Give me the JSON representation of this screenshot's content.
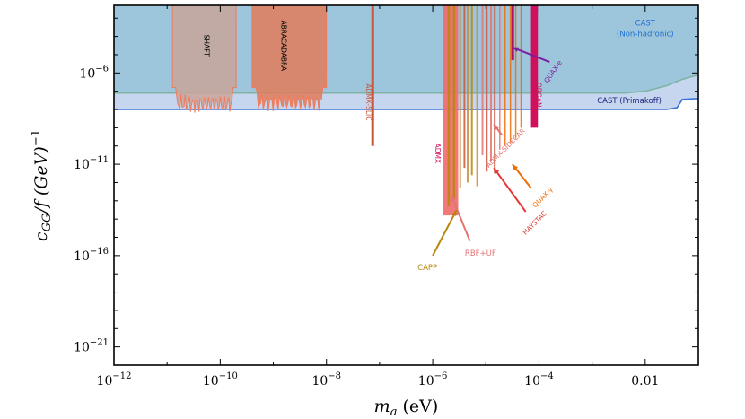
{
  "chart_data": {
    "type": "exclusion-plot",
    "title": "",
    "xlabel": "m",
    "xlabel_sub": "a",
    "xlabel_unit": " (eV)",
    "ylabel": "c",
    "ylabel_sub": "GG",
    "ylabel_rest": "/f (GeV)",
    "ylabel_sup": "−1",
    "x_scale": "log10",
    "y_scale": "log10",
    "xlim_log": [
      -12,
      -1
    ],
    "ylim_log": [
      -22,
      -2.3
    ],
    "x_ticks": [
      {
        "exp": -12,
        "base": "10",
        "sup": "−12"
      },
      {
        "exp": -10,
        "base": "10",
        "sup": "−10"
      },
      {
        "exp": -8,
        "base": "10",
        "sup": "−8"
      },
      {
        "exp": -6,
        "base": "10",
        "sup": "−6"
      },
      {
        "exp": -4,
        "base": "10",
        "sup": "−4"
      },
      {
        "exp": -2,
        "base": "",
        "sup": "",
        "text": "0.01"
      }
    ],
    "y_ticks": [
      {
        "exp": -6,
        "base": "10",
        "sup": "−6"
      },
      {
        "exp": -11,
        "base": "10",
        "sup": "−11"
      },
      {
        "exp": -16,
        "base": "10",
        "sup": "−16"
      },
      {
        "exp": -21,
        "base": "10",
        "sup": "−21"
      }
    ],
    "regions": [
      {
        "name": "CAST (Non-hadronic)",
        "color": "#9dc6dc",
        "edge": "#7fb3a6",
        "lower_log_y": -7.1
      },
      {
        "name": "CAST (Primakoff)",
        "color": "#c7d6ef",
        "edge": "#3b72d9",
        "lower_log_y": -8.0
      },
      {
        "name": "SHAFT",
        "color": "#c9a49a",
        "x_log": [
          -10.9,
          -9.7
        ],
        "lower_log_y": -7.7
      },
      {
        "name": "ABRACADABRA",
        "color": "#e07b5a",
        "x_log": [
          -9.4,
          -8.0
        ],
        "lower_log_y": -7.6
      }
    ],
    "narrow_limits": [
      {
        "name": "ADMX-SLIC",
        "x_log": -7.13,
        "lower_log_y": -10.0,
        "color": "#c9573a"
      },
      {
        "name": "ADMX",
        "x_log_range": [
          -5.8,
          -5.52
        ],
        "lower_log_y": -13.8,
        "color": "#f06a6a"
      },
      {
        "name": "ORGAN",
        "x_log_range": [
          -4.15,
          -4.02
        ],
        "lower_log_y": -9.0,
        "color": "#d0105a"
      }
    ],
    "labels": [
      {
        "name": "SHAFT",
        "text": "SHAFT",
        "color": "#000000",
        "x_log": -10.3,
        "y_log": -4.5,
        "rotate": 90
      },
      {
        "name": "ABRACADABRA",
        "text": "ABRACADABRA",
        "color": "#000000",
        "x_log": -8.85,
        "y_log": -4.5,
        "rotate": 90
      },
      {
        "name": "ADMX-SLIC",
        "text": "ADMX-SLIC",
        "color": "#c9573a",
        "x_log": -7.25,
        "y_log": -7.6,
        "rotate": 90
      },
      {
        "name": "ADMX",
        "text": "ADMX",
        "color": "#d0105a",
        "x_log": -5.95,
        "y_log": -10.4,
        "rotate": 90
      },
      {
        "name": "ORGAN",
        "text": "ORGAN",
        "color": "#d0105a",
        "x_log": -4.05,
        "y_log": -7.2,
        "rotate": 90
      },
      {
        "name": "CAST (Non-hadronic)",
        "text": "CAST",
        "text2": "(Non-hadronic)",
        "color": "#1f6fd0",
        "x_log": -2.0,
        "y_log": -3.4,
        "rotate": 0
      },
      {
        "name": "CAST (Primakoff)",
        "text": "CAST (Primakoff)",
        "color": "#1a237e",
        "x_log": -2.3,
        "y_log": -7.65,
        "rotate": 0
      },
      {
        "name": "QUAX-e",
        "text": "QUAX-e",
        "color": "#7b1fa2",
        "x_log": -3.7,
        "y_log": -6.0,
        "rotate": -55
      },
      {
        "name": "ADMX-SIDECAR",
        "text": "ADMX-SIDECAR",
        "color": "#e67070",
        "x_log": -4.6,
        "y_log": -10.2,
        "rotate": -45
      },
      {
        "name": "QUAX-γ",
        "text": "QUAX-γ",
        "color": "#ef6c00",
        "x_log": -3.9,
        "y_log": -12.9,
        "rotate": -45
      },
      {
        "name": "HAYSTAC",
        "text": "HAYSTAC",
        "color": "#e53935",
        "x_log": -4.05,
        "y_log": -14.3,
        "rotate": -45
      },
      {
        "name": "RBF+UF",
        "text": "RBF+UF",
        "color": "#e57373",
        "x_log": -5.1,
        "y_log": -16.0,
        "rotate": 0
      },
      {
        "name": "CAPP",
        "text": "CAPP",
        "color": "#b8860b",
        "x_log": -6.1,
        "y_log": -16.8,
        "rotate": 0
      }
    ],
    "arrows": [
      {
        "name": "QUAX-e",
        "from_log": [
          -3.8,
          -5.4
        ],
        "to_log": [
          -4.5,
          -4.6
        ],
        "color": "#7b1fa2"
      },
      {
        "name": "ADMX-SIDECAR",
        "from_log": [
          -4.7,
          -9.4
        ],
        "to_log": [
          -4.85,
          -8.8
        ],
        "color": "#e67070"
      },
      {
        "name": "QUAX-γ",
        "from_log": [
          -4.15,
          -12.3
        ],
        "to_log": [
          -4.5,
          -11.0
        ],
        "color": "#ef6c00"
      },
      {
        "name": "HAYSTAC",
        "from_log": [
          -4.25,
          -13.6
        ],
        "to_log": [
          -4.85,
          -11.2
        ],
        "color": "#e53935"
      },
      {
        "name": "RBF+UF",
        "from_log": [
          -5.3,
          -15.2
        ],
        "to_log": [
          -5.65,
          -12.7
        ],
        "color": "#e57373"
      },
      {
        "name": "CAPP",
        "from_log": [
          -6.0,
          -16.0
        ],
        "to_log": [
          -5.55,
          -13.5
        ],
        "color": "#b8860b"
      }
    ]
  }
}
